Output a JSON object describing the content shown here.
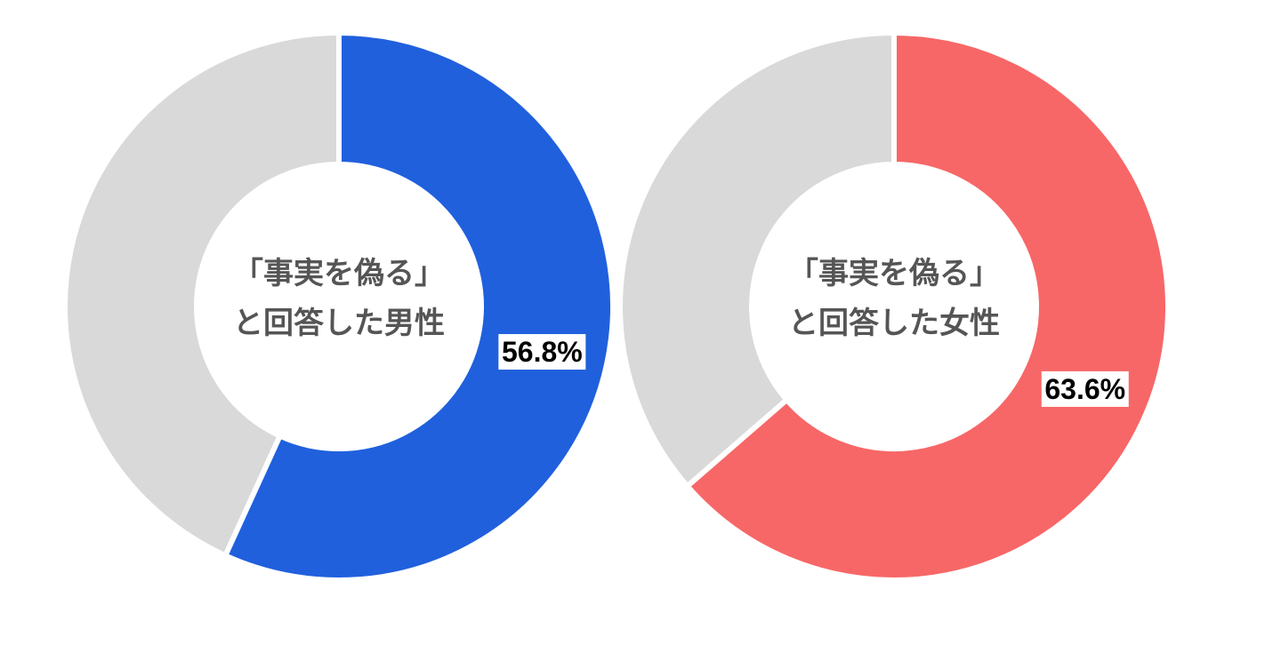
{
  "chart_data": [
    {
      "type": "pie",
      "center_label_line1": "「事実を偽る」",
      "center_label_line2": "と回答した男性",
      "value": 56.8,
      "value_label": "56.8%",
      "color": "#2060DD",
      "remainder_color": "#D9D9D9"
    },
    {
      "type": "pie",
      "center_label_line1": "「事実を偽る」",
      "center_label_line2": "と回答した女性",
      "value": 63.6,
      "value_label": "63.6%",
      "color": "#F76767",
      "remainder_color": "#D9D9D9"
    }
  ]
}
